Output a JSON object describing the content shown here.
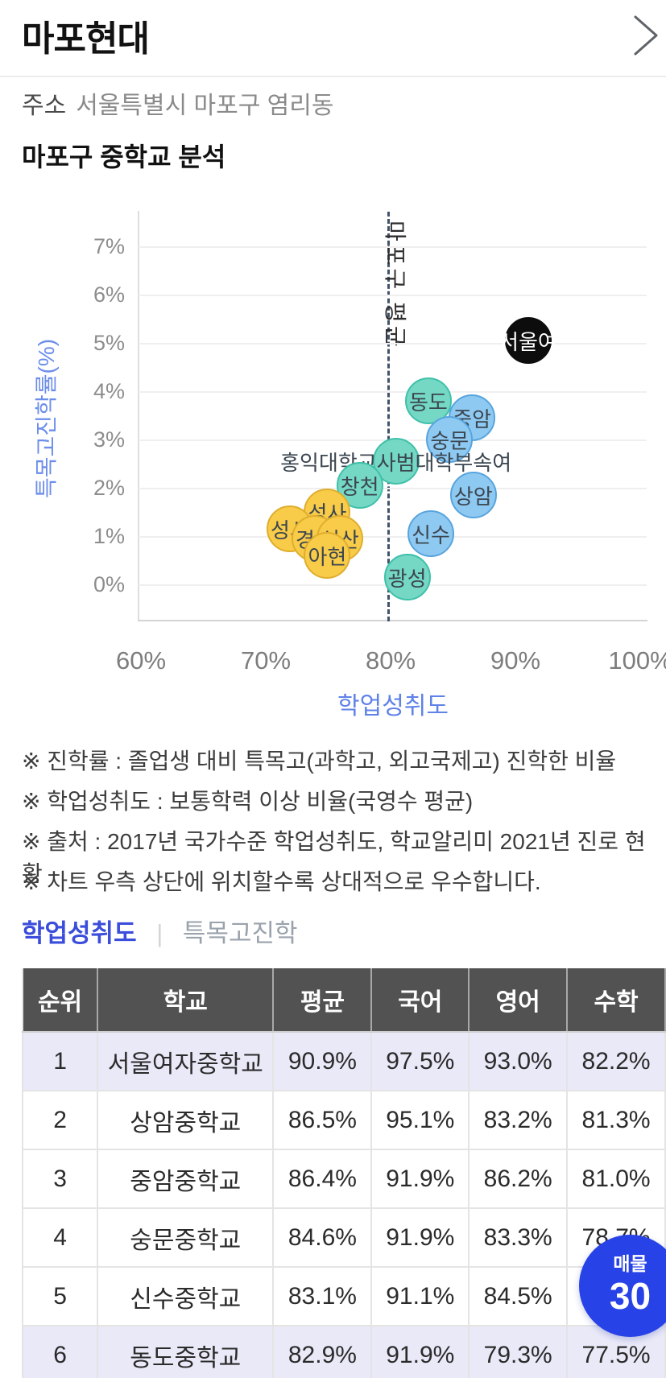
{
  "header": {
    "title": "마포현대",
    "chevron_icon": "›"
  },
  "address": {
    "label": "주소",
    "value": "서울특별시 마포구 염리동"
  },
  "section_title": "마포구 중학교 분석",
  "chart_data": {
    "type": "scatter",
    "title": "마포구 중학교 분석",
    "xlabel": "학업성취도",
    "ylabel": "특목고진학률(%)",
    "xlim": [
      60,
      100
    ],
    "ylim": [
      0,
      7.5
    ],
    "grid": true,
    "x_ticks": [
      "60%",
      "70%",
      "80%",
      "90%",
      "100%"
    ],
    "x_tick_values": [
      60,
      70,
      80,
      90,
      100
    ],
    "y_ticks": [
      "0%",
      "1%",
      "2%",
      "3%",
      "4%",
      "5%",
      "6%",
      "7%"
    ],
    "y_tick_values": [
      0,
      1,
      2,
      3,
      4,
      5,
      6,
      7
    ],
    "reference_line": {
      "value": 79.8,
      "label": "마포구 평균",
      "style": "dashed"
    },
    "points": [
      {
        "name": "서울여",
        "x": 90.9,
        "y": 5.1,
        "group": "black"
      },
      {
        "name": "동도",
        "x": 82.9,
        "y": 3.85,
        "group": "teal"
      },
      {
        "name": "중암",
        "x": 86.4,
        "y": 3.5,
        "group": "blue"
      },
      {
        "name": "숭문",
        "x": 84.6,
        "y": 3.05,
        "group": "blue"
      },
      {
        "name": "홍익대학교사범대학부속여",
        "x": 80.3,
        "y": 2.6,
        "group": "teal"
      },
      {
        "name": "창천",
        "x": 77.4,
        "y": 2.1,
        "group": "teal"
      },
      {
        "name": "상암",
        "x": 86.5,
        "y": 1.9,
        "group": "blue"
      },
      {
        "name": "성사",
        "x": 74.8,
        "y": 1.55,
        "group": "yellow"
      },
      {
        "name": "성서",
        "x": 71.8,
        "y": 1.2,
        "group": "yellow"
      },
      {
        "name": "신수",
        "x": 83.1,
        "y": 1.1,
        "group": "blue"
      },
      {
        "name": "경성",
        "x": 73.8,
        "y": 1.0,
        "group": "yellow"
      },
      {
        "name": "성산",
        "x": 75.8,
        "y": 1.0,
        "group": "yellow"
      },
      {
        "name": "아현",
        "x": 74.8,
        "y": 0.65,
        "group": "yellow"
      },
      {
        "name": "광성",
        "x": 81.2,
        "y": 0.2,
        "group": "teal"
      }
    ],
    "group_colors": {
      "black": {
        "fill": "#0d0d0d",
        "border": "#0d0d0d",
        "text": "#ffffff"
      },
      "teal": {
        "fill": "#74d8c5",
        "border": "#3fc0a9",
        "text": "#3c4650"
      },
      "blue": {
        "fill": "#8ec9f2",
        "border": "#58a4dd",
        "text": "#3c4650"
      },
      "yellow": {
        "fill": "#f8cb49",
        "border": "#dfae2d",
        "text": "#3c4650"
      }
    }
  },
  "footnotes": [
    "※ 진학률 : 졸업생 대비 특목고(과학고, 외고국제고) 진학한 비율",
    "※ 학업성취도 : 보통학력 이상 비율(국영수 평균)",
    "※ 출처 : 2017년 국가수준 학업성취도, 학교알리미 2021년 진로 현황",
    "※ 차트 우측 상단에 위치할수록 상대적으로 우수합니다."
  ],
  "tabs": [
    {
      "label": "학업성취도",
      "active": true
    },
    {
      "label": "특목고진학",
      "active": false
    }
  ],
  "tab_separator": "|",
  "table": {
    "headers": [
      "순위",
      "학교",
      "평균",
      "국어",
      "영어",
      "수학"
    ],
    "rows": [
      {
        "cells": [
          "1",
          "서울여자중학교",
          "90.9%",
          "97.5%",
          "93.0%",
          "82.2%"
        ],
        "highlight": true
      },
      {
        "cells": [
          "2",
          "상암중학교",
          "86.5%",
          "95.1%",
          "83.2%",
          "81.3%"
        ],
        "highlight": false
      },
      {
        "cells": [
          "3",
          "중암중학교",
          "86.4%",
          "91.9%",
          "86.2%",
          "81.0%"
        ],
        "highlight": false
      },
      {
        "cells": [
          "4",
          "숭문중학교",
          "84.6%",
          "91.9%",
          "83.3%",
          "78.7%"
        ],
        "highlight": false
      },
      {
        "cells": [
          "5",
          "신수중학교",
          "83.1%",
          "91.1%",
          "84.5%",
          ""
        ],
        "highlight": false
      },
      {
        "cells": [
          "6",
          "동도중학교",
          "82.9%",
          "91.9%",
          "79.3%",
          "77.5%"
        ],
        "highlight": true
      }
    ]
  },
  "badge": {
    "label": "매물",
    "count": "30"
  },
  "colors": {
    "accent_blue": "#3b4ddb",
    "badge_blue": "#2742e6",
    "axis_title_blue": "#6c8eea",
    "table_header_gray": "#525252",
    "row_highlight": "#e9e9f8",
    "reference_line": "#41536b"
  }
}
